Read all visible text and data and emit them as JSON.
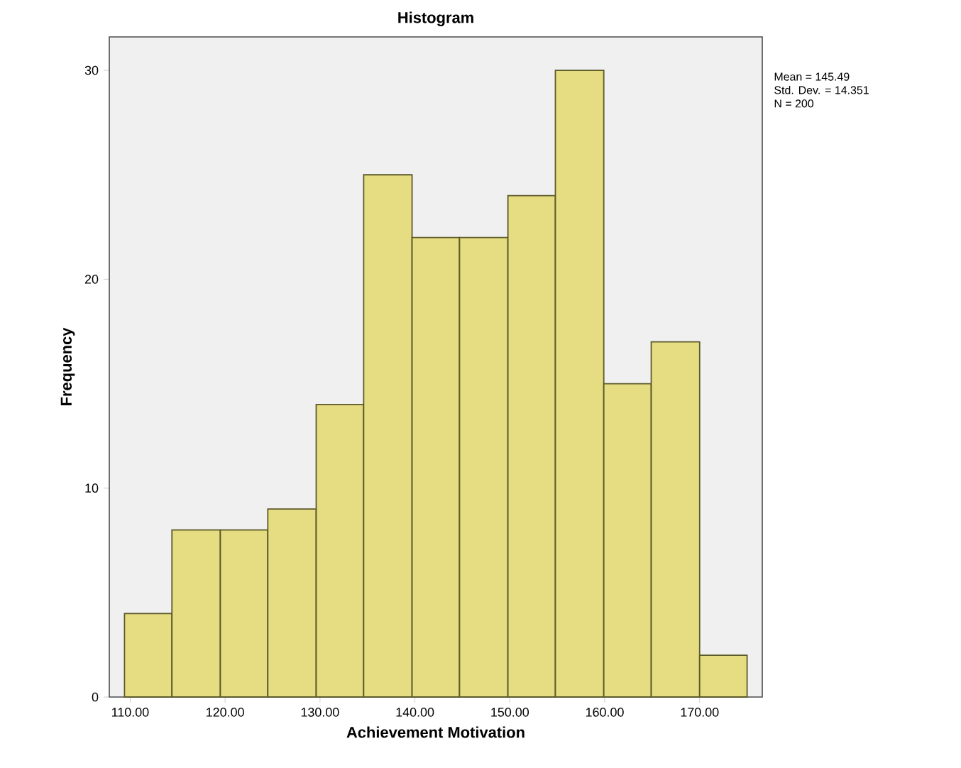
{
  "chart_data": {
    "type": "histogram",
    "title": "Histogram",
    "xlabel": "Achievement Motivation",
    "ylabel": "Frequency",
    "bins": [
      109.4,
      114.4,
      119.5,
      124.5,
      129.6,
      134.6,
      139.7,
      144.7,
      149.8,
      154.8,
      159.9,
      164.9,
      170.0,
      175.0
    ],
    "values": [
      4,
      8,
      8,
      9,
      14,
      25,
      22,
      22,
      24,
      30,
      15,
      17,
      2
    ],
    "color": "#e6dc82",
    "xlim": [
      107.8,
      176.6
    ],
    "ylim": [
      0,
      31.6
    ],
    "xticks": [
      {
        "value": 110,
        "label": "110.00"
      },
      {
        "value": 120,
        "label": "120.00"
      },
      {
        "value": 130,
        "label": "130.00"
      },
      {
        "value": 140,
        "label": "140.00"
      },
      {
        "value": 150,
        "label": "150.00"
      },
      {
        "value": 160,
        "label": "160.00"
      },
      {
        "value": 170,
        "label": "170.00"
      }
    ],
    "yticks": [
      0,
      10,
      20,
      30
    ],
    "annotations": [
      "Mean = 145.49",
      "Std. Dev. = 14.351",
      "N = 200"
    ]
  }
}
